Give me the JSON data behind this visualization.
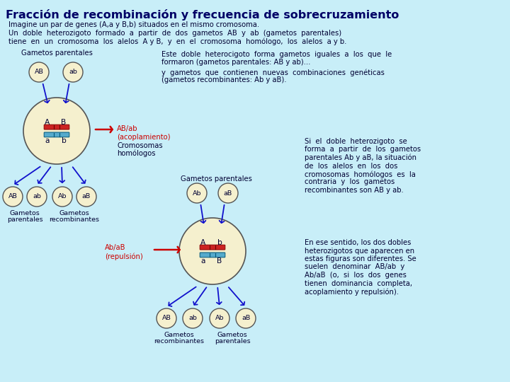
{
  "bg_color": "#c8eef8",
  "title": "Fracción de recombinación y frecuencia de sobrecruzamiento",
  "title_color": "#000066",
  "title_fontsize": 11.5,
  "intro_line1": "Imagine un par de genes (A,a y B,b) situados en el mismo cromosoma.",
  "intro_line2": "Un  doble  heterozigoto  formado  a  partir  de  dos  gametos  AB  y  ab  (gametos  parentales)",
  "intro_line3": "tiene  en  un  cromosoma  los  alelos  A y B,  y  en  el  cromosoma  homólogo,  los  alelos  a y b.",
  "text_color": "#000033",
  "circle_fill": "#f5f0ce",
  "circle_edge": "#555555",
  "arrow_color": "#1111cc",
  "chrom_red": "#cc0000",
  "chrom_blue": "#55aacc",
  "gamete_labels_top1": [
    "AB",
    "ab"
  ],
  "gamete_labels_bottom1": [
    "AB",
    "ab",
    "Ab",
    "aB"
  ],
  "gamete_labels_top2": [
    "Ab",
    "aB"
  ],
  "gamete_labels_bottom2": [
    "AB",
    "ab",
    "Ab",
    "aB"
  ],
  "text_block1_line1": "Este  doble  heterocigoto  forma  gametos  iguales  a  los  que  le",
  "text_block1_line2": "formaron (gametos parentales: AB y ab)...",
  "text_block1_line3": "y  gametos  que  contienen  nuevas  combinaciones  genéticas",
  "text_block1_line4": "(gametos recombinantes: Ab y aB).",
  "text_block2_line1": "Si  el  doble  heterozigoto  se",
  "text_block2_line2": "forma  a  partir  de  los  gametos",
  "text_block2_line3": "parentales Ab y aB, la situación",
  "text_block2_line4": "de  los  alelos  en  los  dos",
  "text_block2_line5": "cromosomas  homólogos  es  la",
  "text_block2_line6": "contraria  y  los  gametos",
  "text_block2_line7": "recombinantes son AB y ab.",
  "text_block3_line1": "En ese sentido, los dos dobles",
  "text_block3_line2": "heterozigotos que aparecen en",
  "text_block3_line3": "estas figuras son diferentes. Se",
  "text_block3_line4": "suelen  denominar  AB/ab  y",
  "text_block3_line5": "Ab/aB  (o,  si  los  dos  genes",
  "text_block3_line6": "tienen  dominancia  completa,",
  "text_block3_line7": "acoplamiento y repulsión).",
  "label_acoplamiento": "AB/ab",
  "label_acoplamiento2": "(acoplamiento)",
  "label_repulsion": "Ab/aB",
  "label_repulsion2": "(repulsión)",
  "label_cromosomas1": "Cromosomas",
  "label_cromosomas2": "homólogos",
  "label_gametos_parentales": "Gametos parentales",
  "label_gametos_parentales2": "Gametos parentales",
  "label_gametos_parentales_b": "Gametos",
  "label_gametos_parentales_b2": "parentales",
  "label_gametos_recombinantes_b": "Gametos",
  "label_gametos_recombinantes_b2": "recombinantes",
  "label_gametos_recombinantes2_b": "Gametos",
  "label_gametos_recombinantes2_b2": "recombinantes",
  "label_gametos_parentales3_b": "Gametos",
  "label_gametos_parentales3_b2": "parentales"
}
